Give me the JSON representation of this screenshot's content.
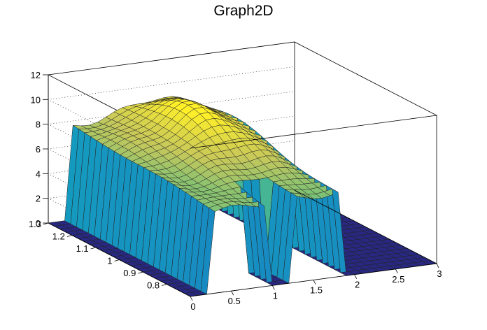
{
  "title": "Graph2D",
  "chart_data": {
    "type": "surface",
    "title": "Graph2D",
    "xlabel": "",
    "ylabel": "",
    "zlabel": "",
    "xlim": [
      0,
      3
    ],
    "ylim": [
      0.7,
      1.3
    ],
    "zlim": [
      0,
      12
    ],
    "grid": true,
    "colormap": "viridis-like (blue to yellow)",
    "x_ticks": [
      "0",
      "0.5",
      "1",
      "1.5",
      "2",
      "2.5",
      "3"
    ],
    "y_ticks": [
      "0.8",
      "0.9",
      "1",
      "1.1",
      "1.2",
      "1.3"
    ],
    "z_ticks": [
      "0",
      "2",
      "4",
      "6",
      "8",
      "10",
      "12"
    ],
    "shape": {
      "description_values": {
        "plateau_height_near_x0": 6.7,
        "peak_height": 9.5,
        "peak_x": 1.3,
        "peak_y": 1.12,
        "back_ridge_height": 9.0,
        "floor_height": 0,
        "nonzero_x_range": [
          0.3,
          1.8
        ],
        "gap_x_range": [
          0.95,
          1.25
        ],
        "gap_y_max": 0.82
      }
    }
  }
}
